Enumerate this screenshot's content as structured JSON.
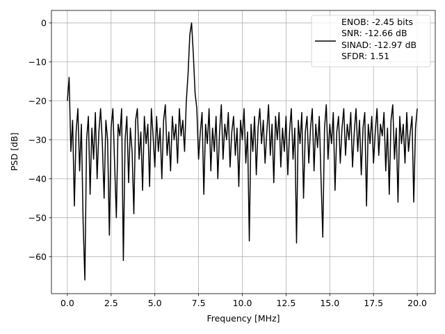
{
  "chart_data": {
    "type": "line",
    "x_label": "Frequency [MHz]",
    "y_label": "PSD [dB]",
    "xlim": [
      -0.91,
      21.03
    ],
    "ylim": [
      -69.5,
      3.2
    ],
    "xticks": [
      {
        "value": 0,
        "label": "0.0"
      },
      {
        "value": 2.5,
        "label": "2.5"
      },
      {
        "value": 5,
        "label": "5.0"
      },
      {
        "value": 7.5,
        "label": "7.5"
      },
      {
        "value": 10,
        "label": "10.0"
      },
      {
        "value": 12.5,
        "label": "12.5"
      },
      {
        "value": 15,
        "label": "15.0"
      },
      {
        "value": 17.5,
        "label": "17.5"
      },
      {
        "value": 20,
        "label": "20.0"
      }
    ],
    "yticks": [
      0,
      {
        "value": -10,
        "label": "−10"
      },
      {
        "value": -20,
        "label": "−20"
      },
      {
        "value": -30,
        "label": "−30"
      },
      {
        "value": -40,
        "label": "−40"
      },
      {
        "value": -50,
        "label": "−50"
      },
      {
        "value": -60,
        "label": "−60"
      }
    ],
    "grid": true,
    "legend": "upper right",
    "x": [
      0,
      0.1,
      0.2,
      0.3,
      0.4,
      0.5,
      0.6,
      0.7,
      0.8,
      0.9,
      1,
      1.1,
      1.2,
      1.3,
      1.4,
      1.5,
      1.6,
      1.7,
      1.8,
      1.9,
      2,
      2.1,
      2.2,
      2.3,
      2.4,
      2.5,
      2.6,
      2.7,
      2.8,
      2.9,
      3,
      3.1,
      3.2,
      3.3,
      3.4,
      3.5,
      3.6,
      3.7,
      3.8,
      3.9,
      4,
      4.1,
      4.2,
      4.3,
      4.4,
      4.5,
      4.6,
      4.7,
      4.8,
      4.9,
      5,
      5.1,
      5.2,
      5.3,
      5.4,
      5.5,
      5.6,
      5.7,
      5.8,
      5.9,
      6,
      6.1,
      6.2,
      6.3,
      6.4,
      6.5,
      6.6,
      6.7,
      6.8,
      6.9,
      7,
      7.1,
      7.2,
      7.3,
      7.4,
      7.5,
      7.6,
      7.7,
      7.8,
      7.9,
      8,
      8.1,
      8.2,
      8.3,
      8.4,
      8.5,
      8.6,
      8.7,
      8.8,
      8.9,
      9,
      9.1,
      9.2,
      9.3,
      9.4,
      9.5,
      9.6,
      9.7,
      9.8,
      9.9,
      10,
      10.1,
      10.2,
      10.3,
      10.4,
      10.5,
      10.6,
      10.7,
      10.8,
      10.9,
      11,
      11.1,
      11.2,
      11.3,
      11.4,
      11.5,
      11.6,
      11.7,
      11.8,
      11.9,
      12,
      12.1,
      12.2,
      12.3,
      12.4,
      12.5,
      12.6,
      12.7,
      12.8,
      12.9,
      13,
      13.1,
      13.2,
      13.3,
      13.4,
      13.5,
      13.6,
      13.7,
      13.8,
      13.9,
      14,
      14.1,
      14.2,
      14.3,
      14.4,
      14.5,
      14.6,
      14.7,
      14.8,
      14.9,
      15,
      15.1,
      15.2,
      15.3,
      15.4,
      15.5,
      15.6,
      15.7,
      15.8,
      15.9,
      16,
      16.1,
      16.2,
      16.3,
      16.4,
      16.5,
      16.6,
      16.7,
      16.8,
      16.9,
      17,
      17.1,
      17.2,
      17.3,
      17.4,
      17.5,
      17.6,
      17.7,
      17.8,
      17.9,
      18,
      18.1,
      18.2,
      18.3,
      18.4,
      18.5,
      18.6,
      18.7,
      18.8,
      18.9,
      19,
      19.1,
      19.2,
      19.3,
      19.4,
      19.5,
      19.6,
      19.7,
      19.8,
      19.9,
      20
    ],
    "series": [
      {
        "name": "ENOB: -2.45 bits\nSNR: -12.66 dB\nSINAD: -12.97 dB\nSFDR: 1.51",
        "color": "#000000",
        "values": [
          -20,
          -14,
          -33,
          -25,
          -47,
          -28,
          -22,
          -38,
          -26,
          -51,
          -66,
          -30,
          -24,
          -44,
          -27,
          -35,
          -23,
          -40,
          -28,
          -22,
          -31,
          -45,
          -25,
          -30,
          -54.5,
          -27,
          -22,
          -36,
          -50,
          -26,
          -29,
          -22,
          -61,
          -30,
          -24,
          -41,
          -27,
          -33,
          -49,
          -25,
          -22,
          -35,
          -28,
          -43,
          -24,
          -31,
          -26,
          -42,
          -22,
          -29,
          -37,
          -24,
          -33,
          -27,
          -40,
          -25,
          -21,
          -34,
          -28,
          -38,
          -24,
          -30,
          -26,
          -36,
          -22,
          -29,
          -25,
          -33,
          -20,
          -13,
          -3,
          0,
          -8,
          -18,
          -22,
          -35,
          -28,
          -23,
          -44,
          -26,
          -31,
          -22,
          -38,
          -27,
          -33,
          -24,
          -40,
          -28,
          -21,
          -35,
          -26,
          -30,
          -23,
          -37,
          -28,
          -24,
          -34,
          -27,
          -42,
          -25,
          -30,
          -22,
          -36,
          -28,
          -56,
          -26,
          -33,
          -24,
          -39,
          -27,
          -22,
          -31,
          -25,
          -36,
          -28,
          -21,
          -34,
          -26,
          -41,
          -24,
          -30,
          -23,
          -37,
          -27,
          -33,
          -24,
          -39,
          -28,
          -22,
          -35,
          -27,
          -56.5,
          -25,
          -31,
          -23,
          -45,
          -28,
          -24,
          -36,
          -27,
          -22,
          -38,
          -26,
          -32,
          -24,
          -40,
          -55,
          -27,
          -21,
          -35,
          -26,
          -31,
          -23,
          -43,
          -28,
          -24,
          -36,
          -27,
          -22,
          -34,
          -26,
          -30,
          -23,
          -37,
          -28,
          -22,
          -33,
          -25,
          -39,
          -27,
          -23,
          -47,
          -26,
          -31,
          -24,
          -36,
          -28,
          -22,
          -34,
          -26,
          -29,
          -23,
          -38,
          -27,
          -44,
          -25,
          -21,
          -35,
          -27,
          -46,
          -24,
          -31,
          -26,
          -36,
          -23,
          -33,
          -28,
          -24,
          -46,
          -27,
          -22
        ]
      }
    ]
  }
}
